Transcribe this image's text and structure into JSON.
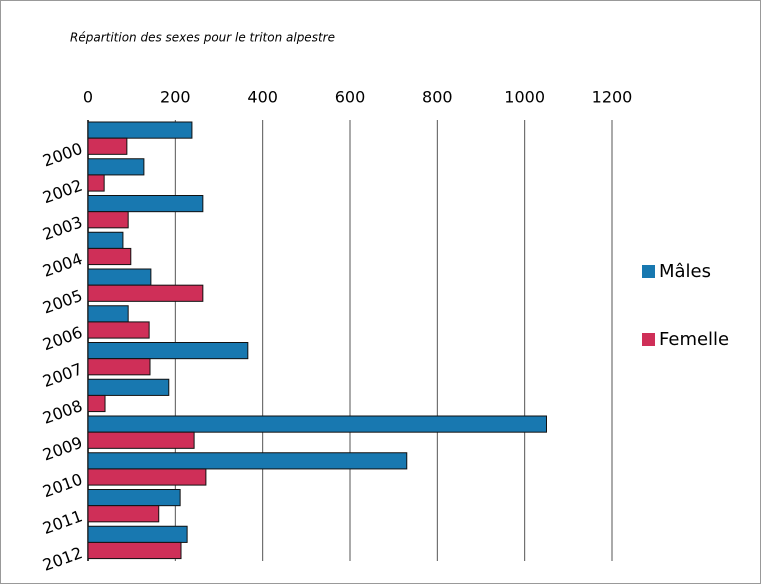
{
  "chart_data": {
    "type": "barh",
    "title": "Répartition des sexes pour le triton alpestre",
    "categories": [
      "2000",
      "2002",
      "2003",
      "2004",
      "2005",
      "2006",
      "2007",
      "2008",
      "2009",
      "2010",
      "2011",
      "2012"
    ],
    "series": [
      {
        "name": "Mâles",
        "color": "#1878b0",
        "values": [
          238,
          128,
          263,
          80,
          144,
          92,
          366,
          185,
          1050,
          730,
          211,
          227
        ]
      },
      {
        "name": "Femelle",
        "color": "#cf2f58",
        "values": [
          89,
          37,
          92,
          98,
          263,
          140,
          142,
          39,
          243,
          270,
          162,
          213
        ]
      }
    ],
    "xlim": [
      0,
      1200
    ],
    "xticks": [
      0,
      200,
      400,
      600,
      800,
      1000,
      1200
    ],
    "grid": true,
    "legend": "right"
  }
}
